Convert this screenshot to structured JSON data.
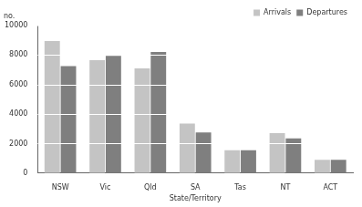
{
  "chart_data": {
    "type": "bar",
    "x_label": "State/Territory",
    "y_label": "no.",
    "categories": [
      "NSW",
      "Vic",
      "Qld",
      "SA",
      "Tas",
      "NT",
      "ACT"
    ],
    "series": [
      {
        "name": "Arrivals",
        "color": "#c4c4c4",
        "values": [
          8950,
          7650,
          7100,
          3350,
          1550,
          2700,
          900
        ]
      },
      {
        "name": "Departures",
        "color": "#7f7f7f",
        "values": [
          7250,
          7950,
          8200,
          2750,
          1550,
          2350,
          900
        ]
      }
    ],
    "ylim": [
      0,
      10000
    ],
    "yticks": [
      0,
      2000,
      4000,
      6000,
      8000,
      10000
    ],
    "grid": true,
    "legend": "top-right"
  }
}
